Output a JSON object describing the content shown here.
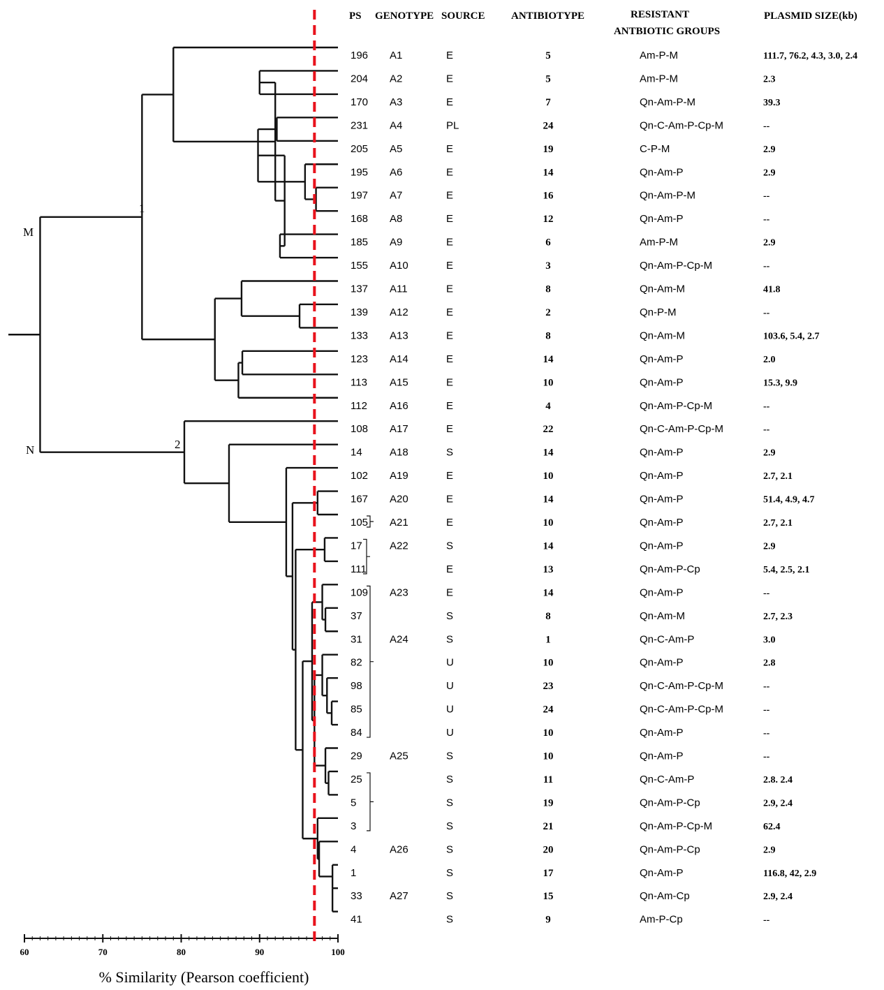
{
  "headers": {
    "ps": "PS",
    "genotype": "GENOTYPE",
    "source": "SOURCE",
    "antibiotype": "ANTIBIOTYPE",
    "resistant_line1": "RESISTANT",
    "resistant_line2": "ANTBIOTIC GROUPS",
    "plasmid": "PLASMID SIZE(kb)"
  },
  "axis": {
    "label": "% Similarity (Pearson coefficient)",
    "ticks": [
      "60",
      "70",
      "80",
      "90",
      "100"
    ],
    "min": 60,
    "max": 100
  },
  "cutoff_similarity": 97,
  "node_labels": {
    "M": "M",
    "N": "N",
    "one": "1",
    "two": "2"
  },
  "rows": [
    {
      "ps": "196",
      "genotype": "A1",
      "source": "E",
      "antibiotype": "5",
      "resistance": "Am-P-M",
      "plasmid": "111.7, 76.2, 4.3, 3.0, 2.4"
    },
    {
      "ps": "204",
      "genotype": "A2",
      "source": "E",
      "antibiotype": "5",
      "resistance": "Am-P-M",
      "plasmid": "2.3"
    },
    {
      "ps": "170",
      "genotype": "A3",
      "source": "E",
      "antibiotype": "7",
      "resistance": "Qn-Am-P-M",
      "plasmid": "39.3"
    },
    {
      "ps": "231",
      "genotype": "A4",
      "source": "PL",
      "antibiotype": "24",
      "resistance": "Qn-C-Am-P-Cp-M",
      "plasmid": "--"
    },
    {
      "ps": "205",
      "genotype": "A5",
      "source": "E",
      "antibiotype": "19",
      "resistance": "C-P-M",
      "plasmid": "2.9"
    },
    {
      "ps": "195",
      "genotype": "A6",
      "source": "E",
      "antibiotype": "14",
      "resistance": "Qn-Am-P",
      "plasmid": "2.9"
    },
    {
      "ps": "197",
      "genotype": "A7",
      "source": "E",
      "antibiotype": "16",
      "resistance": "Qn-Am-P-M",
      "plasmid": "--"
    },
    {
      "ps": "168",
      "genotype": "A8",
      "source": "E",
      "antibiotype": "12",
      "resistance": "Qn-Am-P",
      "plasmid": "--"
    },
    {
      "ps": "185",
      "genotype": "A9",
      "source": "E",
      "antibiotype": "6",
      "resistance": "Am-P-M",
      "plasmid": "2.9"
    },
    {
      "ps": "155",
      "genotype": "A10",
      "source": "E",
      "antibiotype": "3",
      "resistance": "Qn-Am-P-Cp-M",
      "plasmid": "--"
    },
    {
      "ps": "137",
      "genotype": "A11",
      "source": "E",
      "antibiotype": "8",
      "resistance": "Qn-Am-M",
      "plasmid": "41.8"
    },
    {
      "ps": "139",
      "genotype": "A12",
      "source": "E",
      "antibiotype": "2",
      "resistance": "Qn-P-M",
      "plasmid": "--"
    },
    {
      "ps": "133",
      "genotype": "A13",
      "source": "E",
      "antibiotype": "8",
      "resistance": "Qn-Am-M",
      "plasmid": "103.6, 5.4, 2.7"
    },
    {
      "ps": "123",
      "genotype": "A14",
      "source": "E",
      "antibiotype": "14",
      "resistance": "Qn-Am-P",
      "plasmid": "2.0"
    },
    {
      "ps": "113",
      "genotype": "A15",
      "source": "E",
      "antibiotype": "10",
      "resistance": "Qn-Am-P",
      "plasmid": "15.3, 9.9"
    },
    {
      "ps": "112",
      "genotype": "A16",
      "source": "E",
      "antibiotype": "4",
      "resistance": "Qn-Am-P-Cp-M",
      "plasmid": "--"
    },
    {
      "ps": "108",
      "genotype": "A17",
      "source": "E",
      "antibiotype": "22",
      "resistance": "Qn-C-Am-P-Cp-M",
      "plasmid": "--"
    },
    {
      "ps": "14",
      "genotype": "A18",
      "source": "S",
      "antibiotype": "14",
      "resistance": "Qn-Am-P",
      "plasmid": "2.9"
    },
    {
      "ps": "102",
      "genotype": "A19",
      "source": "E",
      "antibiotype": "10",
      "resistance": "Qn-Am-P",
      "plasmid": "2.7, 2.1"
    },
    {
      "ps": "167",
      "genotype": "A20",
      "source": "E",
      "antibiotype": "14",
      "resistance": "Qn-Am-P",
      "plasmid": "51.4, 4.9, 4.7"
    },
    {
      "ps": "105",
      "genotype": "A21",
      "source": "E",
      "antibiotype": "10",
      "resistance": "Qn-Am-P",
      "plasmid": "2.7, 2.1"
    },
    {
      "ps": "17",
      "genotype": "A22",
      "source": "S",
      "antibiotype": "14",
      "resistance": "Qn-Am-P",
      "plasmid": "2.9"
    },
    {
      "ps": "111",
      "genotype": "",
      "source": "E",
      "antibiotype": "13",
      "resistance": "Qn-Am-P-Cp",
      "plasmid": "5.4, 2.5, 2.1"
    },
    {
      "ps": "109",
      "genotype": "A23",
      "source": "E",
      "antibiotype": "14",
      "resistance": "Qn-Am-P",
      "plasmid": "--"
    },
    {
      "ps": "37",
      "genotype": "",
      "source": "S",
      "antibiotype": "8",
      "resistance": "Qn-Am-M",
      "plasmid": "2.7, 2.3"
    },
    {
      "ps": "31",
      "genotype": "A24",
      "source": "S",
      "antibiotype": "1",
      "resistance": "Qn-C-Am-P",
      "plasmid": "3.0"
    },
    {
      "ps": "82",
      "genotype": "",
      "source": "U",
      "antibiotype": "10",
      "resistance": "Qn-Am-P",
      "plasmid": "2.8"
    },
    {
      "ps": "98",
      "genotype": "",
      "source": "U",
      "antibiotype": "23",
      "resistance": "Qn-C-Am-P-Cp-M",
      "plasmid": "--"
    },
    {
      "ps": "85",
      "genotype": "",
      "source": "U",
      "antibiotype": "24",
      "resistance": "Qn-C-Am-P-Cp-M",
      "plasmid": "--"
    },
    {
      "ps": "84",
      "genotype": "",
      "source": "U",
      "antibiotype": "10",
      "resistance": "Qn-Am-P",
      "plasmid": "--"
    },
    {
      "ps": "29",
      "genotype": "A25",
      "source": "S",
      "antibiotype": "10",
      "resistance": "Qn-Am-P",
      "plasmid": "--"
    },
    {
      "ps": "25",
      "genotype": "",
      "source": "S",
      "antibiotype": "11",
      "resistance": "Qn-C-Am-P",
      "plasmid": "2.8. 2.4"
    },
    {
      "ps": "5",
      "genotype": "",
      "source": "S",
      "antibiotype": "19",
      "resistance": "Qn-Am-P-Cp",
      "plasmid": "2.9, 2.4"
    },
    {
      "ps": "3",
      "genotype": "",
      "source": "S",
      "antibiotype": "21",
      "resistance": "Qn-Am-P-Cp-M",
      "plasmid": "62.4"
    },
    {
      "ps": "4",
      "genotype": "A26",
      "source": "S",
      "antibiotype": "20",
      "resistance": "Qn-Am-P-Cp",
      "plasmid": "2.9"
    },
    {
      "ps": "1",
      "genotype": "",
      "source": "S",
      "antibiotype": "17",
      "resistance": "Qn-Am-P",
      "plasmid": "116.8, 42, 2.9"
    },
    {
      "ps": "33",
      "genotype": "A27",
      "source": "S",
      "antibiotype": "15",
      "resistance": "Qn-Am-Cp",
      "plasmid": "2.9, 2.4"
    },
    {
      "ps": "41",
      "genotype": "",
      "source": "S",
      "antibiotype": "9",
      "resistance": "Am-P-Cp",
      "plasmid": "--"
    }
  ]
}
